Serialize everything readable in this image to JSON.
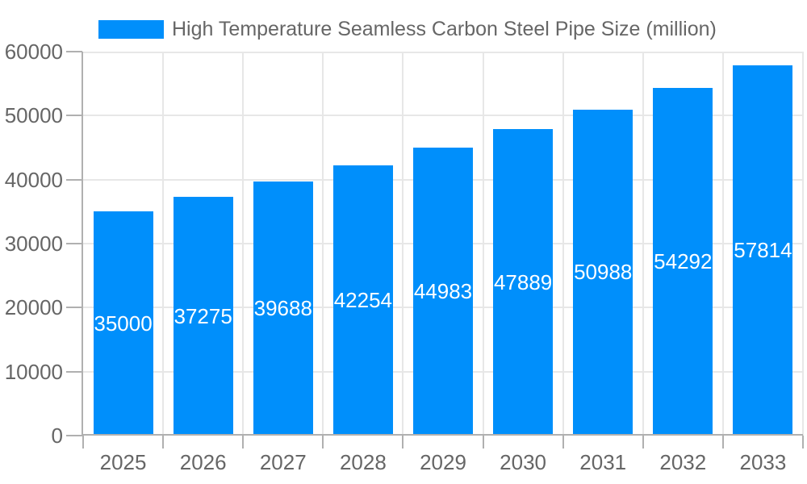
{
  "chart_data": {
    "type": "bar",
    "title": "High Temperature Seamless Carbon Steel Pipe Size (million)",
    "xlabel": "",
    "ylabel": "",
    "categories": [
      "2025",
      "2026",
      "2027",
      "2028",
      "2029",
      "2030",
      "2031",
      "2032",
      "2033"
    ],
    "values": [
      35000,
      37275,
      39688,
      42254,
      44983,
      47889,
      50988,
      54292,
      57814
    ],
    "ylim": [
      0,
      60000
    ],
    "yticks": [
      0,
      10000,
      20000,
      30000,
      40000,
      50000,
      60000
    ],
    "grid": true,
    "legend_position": "top",
    "data_labels": "centered-in-bar",
    "colors": {
      "bar": "#008ffb",
      "grid": "#e7e7e7",
      "axis": "#b0b0b0",
      "tick_label": "#666666",
      "title_text": "#666666",
      "data_label": "#ffffff",
      "background": "#ffffff"
    }
  }
}
